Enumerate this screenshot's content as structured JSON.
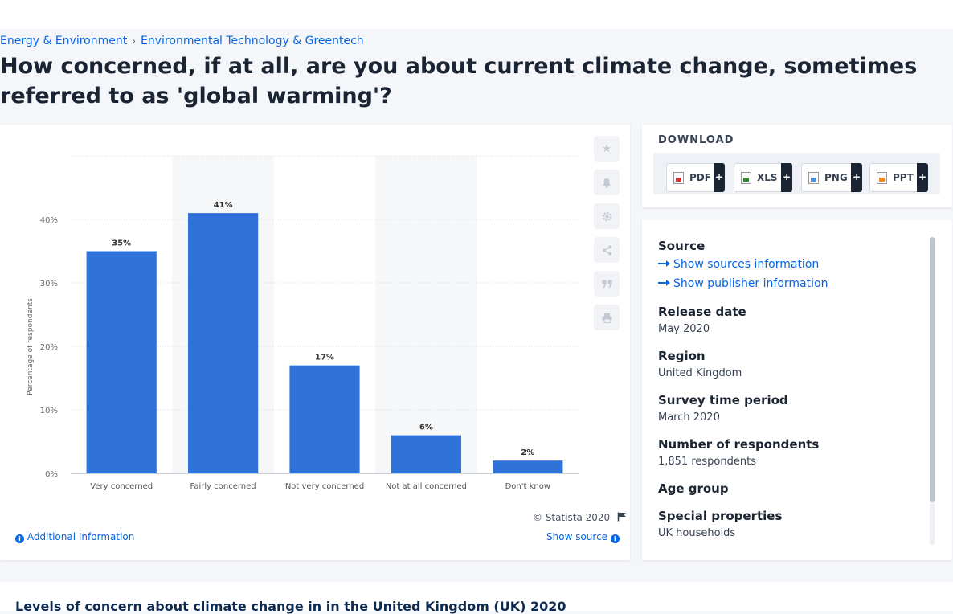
{
  "breadcrumb": [
    "Energy & Environment",
    "Environmental Technology & Greentech"
  ],
  "headline": "How concerned, if at all, are you about current climate change, sometimes referred to as 'global warming'?",
  "chart_data": {
    "type": "bar",
    "categories": [
      "Very concerned",
      "Fairly concerned",
      "Not very concerned",
      "Not at all concerned",
      "Don't know"
    ],
    "values": [
      35,
      41,
      17,
      6,
      2
    ],
    "value_labels": [
      "35%",
      "41%",
      "17%",
      "6%",
      "2%"
    ],
    "ylabel": "Percentage of respondents",
    "ylim": [
      0,
      50
    ],
    "yticks": [
      0,
      10,
      20,
      30,
      40
    ],
    "ytick_labels": [
      "0%",
      "10%",
      "20%",
      "30%",
      "40%"
    ],
    "bar_color": "#2f73d8",
    "grid": true
  },
  "chart_footer": {
    "copyright": "© Statista 2020",
    "additional_info": "Additional Information",
    "show_source": "Show source"
  },
  "tools": [
    "star-icon",
    "bell-icon",
    "gear-icon",
    "share-icon",
    "quote-icon",
    "print-icon"
  ],
  "download": {
    "title": "DOWNLOAD",
    "buttons": [
      {
        "label": "PDF",
        "icon": "pdf-file-icon"
      },
      {
        "label": "XLS",
        "icon": "xls-file-icon"
      },
      {
        "label": "PNG",
        "icon": "png-file-icon"
      },
      {
        "label": "PPT",
        "icon": "ppt-file-icon"
      }
    ],
    "plus": "+"
  },
  "meta": {
    "source_label": "Source",
    "show_sources": "Show sources information",
    "show_publisher": "Show publisher information",
    "release_label": "Release date",
    "release_value": "May 2020",
    "region_label": "Region",
    "region_value": "United Kingdom",
    "survey_label": "Survey time period",
    "survey_value": "March 2020",
    "respondents_label": "Number of respondents",
    "respondents_value": "1,851 respondents",
    "age_label": "Age group",
    "special_label": "Special properties",
    "special_value": "UK households"
  },
  "description_title": "Levels of concern about climate change in in the United Kingdom (UK) 2020"
}
